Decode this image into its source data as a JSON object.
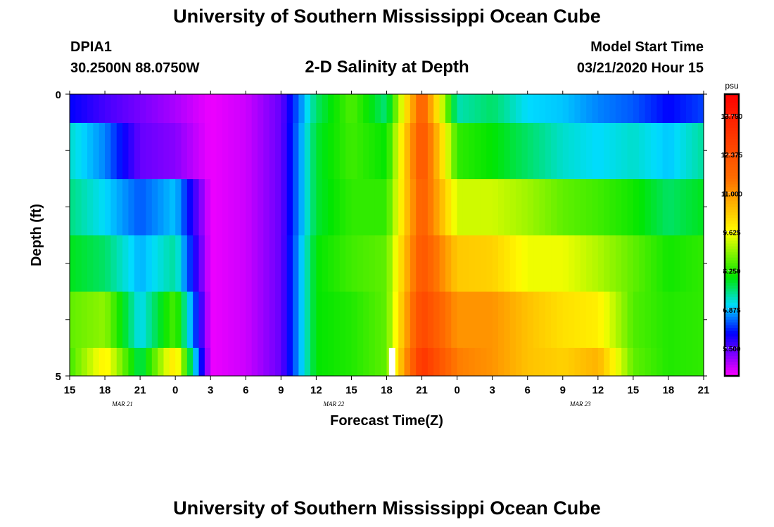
{
  "header": {
    "title": "University of Southern Mississippi Ocean Cube",
    "station": "DPIA1",
    "coords": "30.2500N 88.0750W",
    "subtitle": "2-D Salinity at Depth",
    "model_start_label": "Model Start Time",
    "model_start_value": "03/21/2020 Hour 15"
  },
  "footer": {
    "title": "University of Southern Mississippi Ocean Cube"
  },
  "chart_data": {
    "type": "heatmap",
    "title": "2-D Salinity at Depth",
    "xlabel": "Forecast Time(Z)",
    "ylabel": "Depth (ft)",
    "x_tick_labels": [
      "15",
      "18",
      "21",
      "0",
      "3",
      "6",
      "9",
      "12",
      "15",
      "18",
      "21",
      "0",
      "3",
      "6",
      "9",
      "12",
      "15",
      "18",
      "21"
    ],
    "date_labels": [
      {
        "label": "MAR  21",
        "tick_index": 1
      },
      {
        "label": "MAR  22",
        "tick_index": 7
      },
      {
        "label": "MAR  23",
        "tick_index": 14
      }
    ],
    "y_tick_labels": [
      "0",
      "5"
    ],
    "ylim": [
      0,
      5
    ],
    "colorbar": {
      "unit": "psu",
      "min": 4.5,
      "max": 14.5,
      "ticks": [
        "13.750",
        "12.375",
        "11.000",
        "9.625",
        "8.250",
        "6.875",
        "5.500"
      ],
      "tick_values": [
        13.75,
        12.375,
        11.0,
        9.625,
        8.25,
        6.875,
        5.5
      ]
    },
    "time_hours_from_start": [
      0,
      3,
      6,
      9,
      12,
      15,
      18,
      21,
      24,
      27,
      30,
      33,
      36,
      39,
      42,
      45,
      48,
      51,
      54
    ],
    "depth_rows": [
      "0-0.5",
      "0.5-1.5",
      "1.5-2.5",
      "2.5-3.5",
      "3.5-4.5",
      "4.5-5"
    ],
    "salinity_keyframes_psu": [
      [
        6.0,
        5.6,
        5.3,
        5.0,
        4.6,
        4.8,
        5.4,
        7.6,
        8.5,
        7.5,
        12.0,
        7.3,
        7.6,
        7.0,
        6.9,
        6.6,
        6.4,
        6.0,
        6.3
      ],
      [
        7.2,
        6.6,
        5.4,
        5.2,
        4.6,
        4.8,
        5.4,
        7.8,
        8.4,
        8.0,
        12.3,
        8.3,
        8.0,
        7.6,
        7.2,
        7.0,
        7.2,
        6.9,
        7.4
      ],
      [
        7.5,
        7.0,
        6.4,
        6.9,
        4.6,
        4.8,
        5.4,
        7.8,
        8.3,
        8.3,
        12.0,
        9.3,
        9.3,
        9.0,
        8.6,
        8.4,
        8.1,
        7.6,
        7.9
      ],
      [
        7.9,
        7.6,
        6.8,
        7.4,
        4.6,
        4.8,
        5.4,
        8.0,
        8.4,
        8.6,
        12.2,
        10.3,
        10.2,
        9.5,
        9.5,
        9.1,
        8.6,
        8.1,
        8.3
      ],
      [
        8.6,
        8.9,
        7.0,
        8.5,
        4.6,
        4.8,
        5.4,
        8.0,
        8.2,
        8.6,
        12.6,
        11.0,
        11.0,
        10.4,
        10.0,
        9.8,
        8.5,
        8.2,
        8.3
      ],
      [
        8.4,
        9.8,
        7.6,
        10.0,
        4.6,
        4.8,
        5.4,
        8.0,
        8.2,
        8.6,
        13.1,
        11.3,
        11.0,
        10.4,
        10.2,
        10.6,
        8.6,
        8.2,
        8.3
      ]
    ],
    "missing_value_marker": {
      "time_hour": 27.5,
      "depth_row": "4.5-5"
    }
  }
}
